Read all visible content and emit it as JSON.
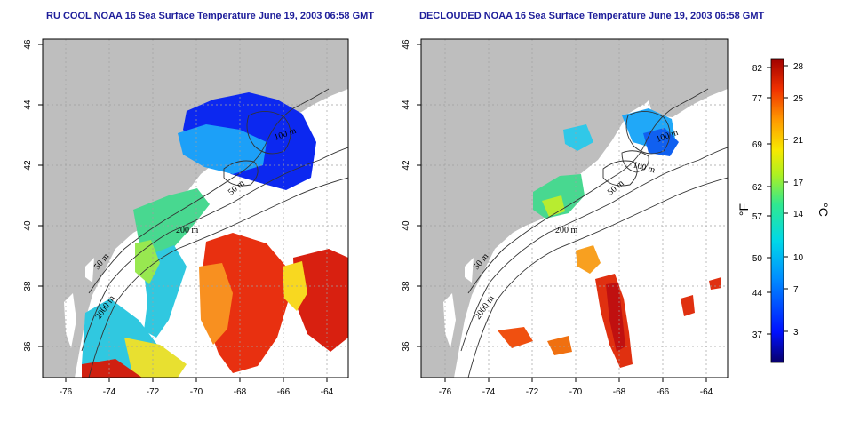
{
  "titles": {
    "left": "RU COOL NOAA 16 Sea Surface Temperature June 19, 2003 06:58 GMT",
    "right": "DECLOUDED NOAA 16 Sea Surface Temperature June 19, 2003 06:58 GMT"
  },
  "axes": {
    "lon_ticks": [
      "-76",
      "-74",
      "-72",
      "-70",
      "-68",
      "-66",
      "-64"
    ],
    "lat_ticks": [
      "36",
      "38",
      "40",
      "42",
      "44",
      "46"
    ]
  },
  "contour_labels": {
    "left": [
      "50 m",
      "200 m",
      "50 m",
      "2000 m",
      "100 m"
    ],
    "right": [
      "50 m",
      "200 m",
      "50 m",
      "2000 m",
      "100 m",
      "100 m"
    ]
  },
  "colorbar": {
    "fahrenheit_ticks": [
      "82",
      "77",
      "69",
      "62",
      "57",
      "50",
      "44",
      "37"
    ],
    "celsius_ticks": [
      "28",
      "25",
      "21",
      "17",
      "14",
      "10",
      "7",
      "3"
    ],
    "unit_f": "°F",
    "unit_c": "°C"
  },
  "colors": {
    "land": "#bebebe",
    "title": "#1d1d9a",
    "scale": [
      "#08006b",
      "#0010ff",
      "#0090ff",
      "#00d8e8",
      "#30e890",
      "#b0f020",
      "#f8e800",
      "#ff9800",
      "#f03000",
      "#a00000"
    ]
  }
}
